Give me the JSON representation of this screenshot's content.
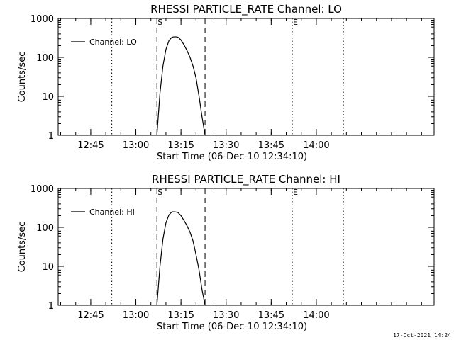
{
  "background": "#ffffff",
  "foreground": "#000000",
  "chart_data": [
    {
      "type": "line",
      "title": "RHESSI PARTICLE_RATE Channel: LO",
      "xlabel": "Start Time (06-Dec-10 12:34:10)",
      "ylabel": "Counts/sec",
      "yscale": "log",
      "ylim": [
        1,
        1000
      ],
      "xlim_minutes_after_start": [
        0,
        125
      ],
      "x_tick_labels": [
        "12:45",
        "13:00",
        "13:15",
        "13:30",
        "13:45",
        "14:00"
      ],
      "y_tick_labels": [
        "1",
        "10",
        "100",
        "1000"
      ],
      "legend": {
        "position": "top-left",
        "entries": [
          "Channel: LO"
        ]
      },
      "markers": [
        {
          "label": "S",
          "time": "13:07",
          "style": "dashed"
        },
        {
          "label": "",
          "time": "13:23",
          "style": "dashed"
        },
        {
          "label": "",
          "time": "12:52",
          "style": "dotted"
        },
        {
          "label": "E",
          "time": "13:52",
          "style": "dotted"
        },
        {
          "label": "",
          "time": "14:09",
          "style": "dotted"
        }
      ],
      "series": [
        {
          "name": "Channel: LO",
          "time": [
            "13:07",
            "13:08",
            "13:09",
            "13:10",
            "13:11",
            "13:12",
            "13:13",
            "13:14",
            "13:15",
            "13:16",
            "13:17",
            "13:18",
            "13:19",
            "13:20",
            "13:21",
            "13:22",
            "13:23"
          ],
          "values": [
            1,
            12,
            60,
            160,
            270,
            330,
            340,
            330,
            280,
            210,
            150,
            100,
            60,
            30,
            10,
            3,
            1
          ]
        }
      ]
    },
    {
      "type": "line",
      "title": "RHESSI PARTICLE_RATE Channel: HI",
      "xlabel": "Start Time (06-Dec-10 12:34:10)",
      "ylabel": "Counts/sec",
      "yscale": "log",
      "ylim": [
        1,
        1000
      ],
      "xlim_minutes_after_start": [
        0,
        125
      ],
      "x_tick_labels": [
        "12:45",
        "13:00",
        "13:15",
        "13:30",
        "13:45",
        "14:00"
      ],
      "y_tick_labels": [
        "1",
        "10",
        "100",
        "1000"
      ],
      "legend": {
        "position": "top-left",
        "entries": [
          "Channel: HI"
        ]
      },
      "markers": [
        {
          "label": "S",
          "time": "13:07",
          "style": "dashed"
        },
        {
          "label": "",
          "time": "13:23",
          "style": "dashed"
        },
        {
          "label": "",
          "time": "12:52",
          "style": "dotted"
        },
        {
          "label": "E",
          "time": "13:52",
          "style": "dotted"
        },
        {
          "label": "",
          "time": "14:09",
          "style": "dotted"
        }
      ],
      "series": [
        {
          "name": "Channel: HI",
          "time": [
            "13:07",
            "13:08",
            "13:09",
            "13:10",
            "13:11",
            "13:12",
            "13:13",
            "13:14",
            "13:15",
            "13:16",
            "13:17",
            "13:18",
            "13:19",
            "13:20",
            "13:21",
            "13:22",
            "13:23"
          ],
          "values": [
            1,
            10,
            50,
            130,
            210,
            250,
            250,
            240,
            200,
            150,
            110,
            75,
            45,
            20,
            8,
            2.5,
            1
          ]
        }
      ]
    }
  ],
  "footer_stamp": "17-Oct-2021 14:24"
}
